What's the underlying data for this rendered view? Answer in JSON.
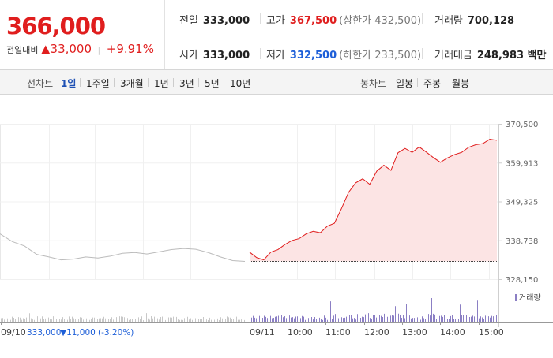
{
  "quote": {
    "current_price": "366,000",
    "change_label": "전일대비",
    "change_arrow": "▲",
    "change_amount": "33,000",
    "change_pct": "+9.91%"
  },
  "stats": {
    "prev_close": {
      "label": "전일",
      "value": "333,000"
    },
    "open": {
      "label": "시가",
      "value": "333,000"
    },
    "high": {
      "label": "고가",
      "value": "367,500",
      "sub": "(상한가 432,500)"
    },
    "low": {
      "label": "저가",
      "value": "332,500",
      "sub": "(하한가 233,500)"
    },
    "volume": {
      "label": "거래량",
      "value": "700,128"
    },
    "amount": {
      "label": "거래대금",
      "value": "248,983 백만"
    }
  },
  "tabs": {
    "line_label": "선차트",
    "line_tabs": [
      "1일",
      "1주일",
      "3개월",
      "1년",
      "3년",
      "5년",
      "10년"
    ],
    "candle_label": "봉차트",
    "candle_tabs": [
      "일봉",
      "주봉",
      "월봉"
    ]
  },
  "colors": {
    "up": "#e01e1e",
    "down": "#1e5fd8",
    "prev_line": "#bbbbbb",
    "volume": "#8b7fc4"
  },
  "chart_data": {
    "type": "line",
    "y_ticks": [
      "370,500",
      "359,913",
      "349,325",
      "338,738",
      "328,150"
    ],
    "ylim": [
      328150,
      370500
    ],
    "x_labels": [
      "09/10",
      "09/11",
      "10:00",
      "11:00",
      "12:00",
      "13:00",
      "14:00",
      "15:00"
    ],
    "volume_legend": "거래량",
    "prev_day_info": {
      "date": "09/10",
      "close": "333,000",
      "change": "▼11,000",
      "pct": "(-3.20%)"
    },
    "series": [
      {
        "values": [
          340500,
          338400,
          337200,
          334900,
          334200,
          333400,
          333600,
          334200,
          333900,
          334400,
          335200,
          335400,
          335000,
          335600,
          336200,
          336500,
          336300,
          335400,
          334200,
          333200,
          333000
        ]
      },
      {
        "values": [
          335500,
          334000,
          333400,
          335500,
          336200,
          337600,
          338700,
          339200,
          340500,
          341200,
          340800,
          342600,
          343400,
          347400,
          351800,
          354400,
          355500,
          354000,
          357600,
          359200,
          357800,
          362600,
          363800,
          362700,
          364200,
          362800,
          361300,
          360000,
          361200,
          362100,
          362700,
          364100,
          364800,
          365100,
          366300,
          366000
        ]
      }
    ]
  }
}
